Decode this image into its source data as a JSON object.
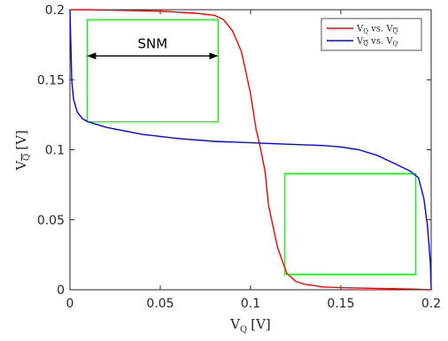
{
  "chart_data": {
    "type": "line",
    "xlabel": {
      "main": "V",
      "sub": "Q",
      "unit": "[V]"
    },
    "ylabel": {
      "main": "V",
      "sub": "Q",
      "unit": "[V]"
    },
    "xlim": [
      0,
      0.2
    ],
    "ylim": [
      0,
      0.2
    ],
    "x_ticks": [
      {
        "value": 0,
        "label": "0"
      },
      {
        "value": 0.05,
        "label": "0.05"
      },
      {
        "value": 0.1,
        "label": "0.1"
      },
      {
        "value": 0.15,
        "label": "0.15"
      },
      {
        "value": 0.2,
        "label": "0.2"
      }
    ],
    "y_ticks": [
      {
        "value": 0,
        "label": "0"
      },
      {
        "value": 0.05,
        "label": "0.05"
      },
      {
        "value": 0.1,
        "label": "0.1"
      },
      {
        "value": 0.15,
        "label": "0.15"
      },
      {
        "value": 0.2,
        "label": "0.2"
      }
    ],
    "grid": false,
    "legend_position": "top-right",
    "series": [
      {
        "name": "VQ vs. VQ̄",
        "legend": {
          "a": "V",
          "a_sub": "Q",
          "mid": " vs. ",
          "b": "V",
          "b_sub": "Q"
        },
        "color": "#ff0000",
        "x": [
          0,
          0.01,
          0.03,
          0.05,
          0.07,
          0.08,
          0.085,
          0.09,
          0.095,
          0.1,
          0.103,
          0.105,
          0.108,
          0.11,
          0.115,
          0.12,
          0.125,
          0.13,
          0.14,
          0.15,
          0.17,
          0.19,
          0.2
        ],
        "y": [
          0.2,
          0.2,
          0.1995,
          0.199,
          0.1975,
          0.196,
          0.193,
          0.185,
          0.17,
          0.14,
          0.115,
          0.104,
          0.085,
          0.06,
          0.03,
          0.012,
          0.006,
          0.004,
          0.002,
          0.0015,
          0.001,
          0.0005,
          0
        ]
      },
      {
        "name": "VQ̄ vs. VQ",
        "legend": {
          "a": "V",
          "a_sub": "Q",
          "mid": " vs. ",
          "b": "V",
          "b_sub": "Q"
        },
        "color": "#0000ff",
        "x": [
          0,
          0.0005,
          0.001,
          0.002,
          0.004,
          0.007,
          0.01,
          0.02,
          0.04,
          0.06,
          0.08,
          0.1,
          0.12,
          0.14,
          0.15,
          0.16,
          0.17,
          0.18,
          0.188,
          0.193,
          0.196,
          0.198,
          0.1995,
          0.2
        ],
        "y": [
          0.2,
          0.175,
          0.15,
          0.136,
          0.127,
          0.122,
          0.12,
          0.116,
          0.111,
          0.108,
          0.106,
          0.105,
          0.104,
          0.103,
          0.102,
          0.1,
          0.096,
          0.09,
          0.085,
          0.08,
          0.065,
          0.045,
          0.02,
          0
        ]
      }
    ],
    "boxes": [
      {
        "x0": 0.0095,
        "x1": 0.082,
        "y0": 0.12,
        "y1": 0.193,
        "color": "#00ff00"
      },
      {
        "x0": 0.119,
        "x1": 0.1915,
        "y0": 0.011,
        "y1": 0.083,
        "color": "#00ff00"
      }
    ],
    "annotation": {
      "text": "SNM",
      "x0": 0.0095,
      "x1": 0.082,
      "y": 0.167
    }
  }
}
